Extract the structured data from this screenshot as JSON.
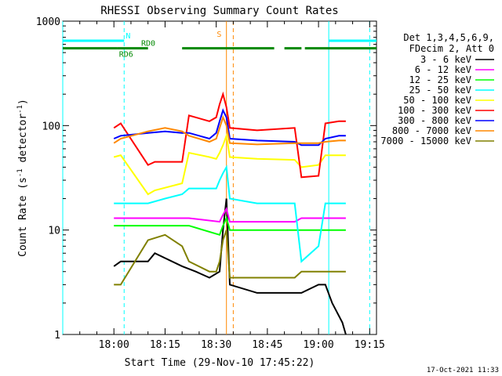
{
  "chart_data": {
    "type": "line",
    "title": "RHESSI Observing Summary Count Rates",
    "xlabel": "Start Time (29-Nov-10 17:45:22)",
    "ylabel_main": "Count Rate (s",
    "ylabel_sup": "-1",
    "ylabel_rest": " detector",
    "ylabel_end": ")",
    "y_scale": "log",
    "ylim": [
      1,
      1000
    ],
    "xlim_minutes": [
      -15,
      77
    ],
    "x_ticks": [
      {
        "m": 0,
        "label": "18:00"
      },
      {
        "m": 15,
        "label": "18:15"
      },
      {
        "m": 30,
        "label": "18:30"
      },
      {
        "m": 45,
        "label": "18:45"
      },
      {
        "m": 60,
        "label": "19:00"
      },
      {
        "m": 75,
        "label": "19:15"
      }
    ],
    "y_ticks": [
      {
        "v": 1,
        "label": "1"
      },
      {
        "v": 10,
        "label": "10"
      },
      {
        "v": 100,
        "label": "100"
      },
      {
        "v": 1000,
        "label": "1000"
      }
    ],
    "legend_header": [
      "Det 1,3,4,5,6,9,",
      "FDecim 2, Att 0"
    ],
    "series": [
      {
        "name": "3 - 6 keV",
        "color": "#000000",
        "x": [
          0,
          2,
          10,
          12,
          20,
          24,
          28,
          31,
          32,
          33,
          34,
          42,
          53,
          55,
          60,
          62,
          64,
          67,
          68
        ],
        "y": [
          4.5,
          5,
          5,
          6,
          4.5,
          4,
          3.5,
          4,
          10,
          20,
          3,
          2.5,
          2.5,
          2.5,
          3,
          3,
          2,
          1.3,
          1
        ]
      },
      {
        "name": "6 - 12 keV",
        "color": "#ff00ff",
        "x": [
          0,
          10,
          20,
          22,
          31,
          32,
          33,
          34,
          42,
          53,
          55,
          60,
          62,
          66,
          68
        ],
        "y": [
          13,
          13,
          13,
          13,
          12,
          14,
          16,
          12,
          12,
          12,
          13,
          13,
          13,
          13,
          13
        ]
      },
      {
        "name": "12 - 25 keV",
        "color": "#00ff00",
        "x": [
          0,
          2,
          10,
          12,
          20,
          22,
          31,
          32,
          33,
          34,
          42,
          53,
          55,
          60,
          62,
          66,
          68
        ],
        "y": [
          11,
          11,
          11,
          11,
          11,
          11,
          9,
          11,
          13,
          10,
          10,
          10,
          10,
          10,
          10,
          10,
          10
        ]
      },
      {
        "name": "25 - 50 keV",
        "color": "#00ffff",
        "x": [
          0,
          2,
          10,
          15,
          20,
          22,
          28,
          30,
          31,
          32,
          33,
          34,
          42,
          53,
          55,
          60,
          62,
          66,
          68
        ],
        "y": [
          18,
          18,
          18,
          20,
          22,
          25,
          25,
          25,
          30,
          35,
          40,
          20,
          18,
          18,
          5,
          7,
          18,
          18,
          18
        ]
      },
      {
        "name": "50 - 100 keV",
        "color": "#ffff00",
        "x": [
          0,
          2,
          10,
          12,
          20,
          22,
          28,
          30,
          31,
          32,
          33,
          34,
          42,
          53,
          55,
          60,
          62,
          66,
          68
        ],
        "y": [
          50,
          52,
          22,
          24,
          28,
          55,
          50,
          48,
          55,
          65,
          80,
          50,
          48,
          47,
          40,
          42,
          52,
          52,
          52
        ]
      },
      {
        "name": "100 - 300 keV",
        "color": "#ff0000",
        "x": [
          0,
          2,
          10,
          12,
          20,
          22,
          28,
          30,
          31,
          32,
          33,
          34,
          42,
          53,
          55,
          60,
          62,
          66,
          68
        ],
        "y": [
          95,
          105,
          42,
          45,
          45,
          125,
          110,
          120,
          160,
          200,
          150,
          95,
          90,
          95,
          32,
          33,
          105,
          110,
          110
        ]
      },
      {
        "name": "300 - 800 keV",
        "color": "#0000ff",
        "x": [
          0,
          2,
          10,
          15,
          20,
          22,
          28,
          30,
          31,
          32,
          33,
          34,
          42,
          53,
          55,
          60,
          62,
          66,
          68
        ],
        "y": [
          75,
          80,
          85,
          88,
          85,
          85,
          75,
          85,
          110,
          140,
          120,
          75,
          72,
          70,
          65,
          65,
          75,
          80,
          80
        ]
      },
      {
        "name": "800 - 7000 keV",
        "color": "#ff8800",
        "x": [
          0,
          2,
          10,
          15,
          20,
          22,
          28,
          30,
          31,
          32,
          33,
          34,
          42,
          53,
          55,
          60,
          62,
          66,
          68
        ],
        "y": [
          68,
          75,
          88,
          95,
          88,
          80,
          70,
          75,
          95,
          120,
          100,
          68,
          66,
          68,
          68,
          68,
          70,
          72,
          72
        ]
      },
      {
        "name": "7000 - 15000 keV",
        "color": "#808000",
        "x": [
          0,
          2,
          10,
          15,
          20,
          22,
          28,
          30,
          31,
          32,
          33,
          34,
          42,
          53,
          55,
          60,
          62,
          66,
          68
        ],
        "y": [
          3,
          3,
          8,
          9,
          7,
          5,
          4,
          4,
          5,
          8,
          10,
          3.5,
          3.5,
          3.5,
          4,
          4,
          4,
          4,
          4
        ]
      }
    ],
    "state_bars": [
      {
        "color": "#00ffff",
        "y_level": 650,
        "segments": [
          [
            -15,
            3
          ],
          [
            63,
            77
          ]
        ],
        "labels": [
          {
            "text": "N",
            "m": 3.5
          }
        ]
      },
      {
        "color": "#008800",
        "y_level": 550,
        "segments": [
          [
            -15,
            1
          ],
          [
            1,
            10
          ],
          [
            20,
            47
          ],
          [
            50,
            55
          ],
          [
            56,
            77
          ]
        ],
        "labels": [
          {
            "text": "RD6",
            "m": 1.5,
            "below": true
          },
          {
            "text": "RD0",
            "m": 8
          }
        ]
      }
    ],
    "vertical_markers": [
      {
        "m": -15,
        "color": "#00ffff",
        "dash": false
      },
      {
        "m": 3,
        "color": "#00ffff",
        "dash": true
      },
      {
        "m": 63,
        "color": "#00ffff",
        "dash": false
      },
      {
        "m": 75,
        "color": "#00ffff",
        "dash": true
      },
      {
        "m": 33,
        "color": "#ff8800",
        "dash": false
      },
      {
        "m": 35,
        "color": "#ff8800",
        "dash": true
      }
    ],
    "saa_label": {
      "text": "S",
      "m": 32
    },
    "grid": false,
    "legend_position": "top-right",
    "footer_date": "17-Oct-2021 11:33"
  }
}
